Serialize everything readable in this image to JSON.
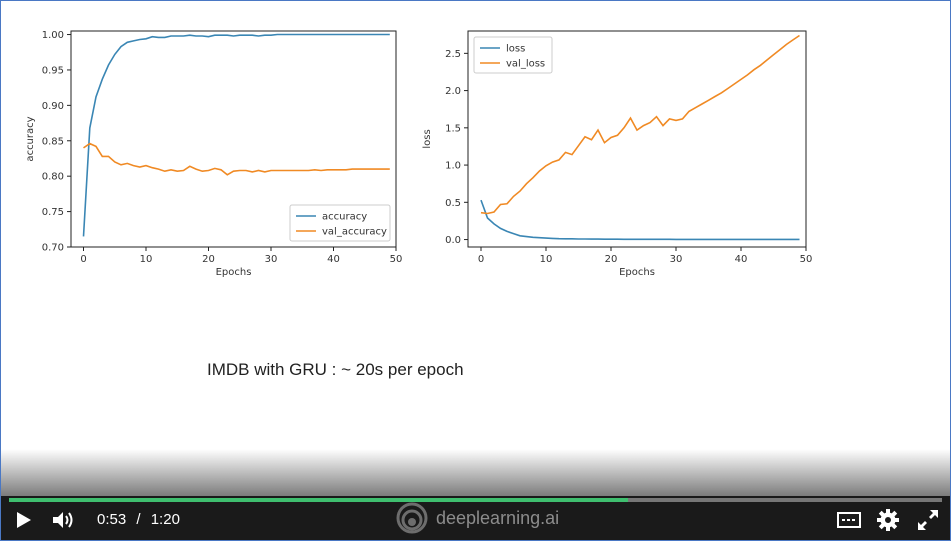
{
  "slide": {
    "caption": "IMDB with GRU : ~ 20s per epoch"
  },
  "colors": {
    "train": "#3a86b4",
    "val": "#f08a24",
    "progress": "#3fbf6f",
    "border": "#4a78c4"
  },
  "chart_data": [
    {
      "type": "line",
      "xlabel": "Epochs",
      "ylabel": "accuracy",
      "xlim": [
        -2,
        50
      ],
      "ylim": [
        0.7,
        1.005
      ],
      "xticks": [
        0,
        10,
        20,
        30,
        40,
        50
      ],
      "yticks": [
        "0.70",
        "0.75",
        "0.80",
        "0.85",
        "0.90",
        "0.95",
        "1.00"
      ],
      "ytick_values": [
        0.7,
        0.75,
        0.8,
        0.85,
        0.9,
        0.95,
        1.0
      ],
      "legend_placement": "bottom-right",
      "x": [
        0,
        1,
        2,
        3,
        4,
        5,
        6,
        7,
        8,
        9,
        10,
        11,
        12,
        13,
        14,
        15,
        16,
        17,
        18,
        19,
        20,
        21,
        22,
        23,
        24,
        25,
        26,
        27,
        28,
        29,
        30,
        31,
        32,
        33,
        34,
        35,
        36,
        37,
        38,
        39,
        40,
        41,
        42,
        43,
        44,
        45,
        46,
        47,
        48,
        49
      ],
      "series": [
        {
          "name": "accuracy",
          "values": [
            0.715,
            0.868,
            0.912,
            0.937,
            0.957,
            0.972,
            0.983,
            0.989,
            0.991,
            0.993,
            0.994,
            0.997,
            0.996,
            0.996,
            0.998,
            0.998,
            0.998,
            0.999,
            0.998,
            0.998,
            0.997,
            0.999,
            0.999,
            0.999,
            0.998,
            0.999,
            0.999,
            0.999,
            0.998,
            0.999,
            0.999,
            1.0,
            1.0,
            1.0,
            1.0,
            1.0,
            1.0,
            1.0,
            1.0,
            1.0,
            1.0,
            1.0,
            1.0,
            1.0,
            1.0,
            1.0,
            1.0,
            1.0,
            1.0,
            1.0
          ]
        },
        {
          "name": "val_accuracy",
          "values": [
            0.84,
            0.846,
            0.842,
            0.828,
            0.828,
            0.82,
            0.816,
            0.818,
            0.815,
            0.813,
            0.815,
            0.812,
            0.81,
            0.807,
            0.809,
            0.807,
            0.808,
            0.814,
            0.81,
            0.807,
            0.808,
            0.811,
            0.809,
            0.802,
            0.807,
            0.808,
            0.808,
            0.806,
            0.808,
            0.806,
            0.808,
            0.808,
            0.808,
            0.808,
            0.808,
            0.808,
            0.808,
            0.809,
            0.808,
            0.809,
            0.809,
            0.809,
            0.809,
            0.81,
            0.81,
            0.81,
            0.81,
            0.81,
            0.81,
            0.81
          ]
        }
      ]
    },
    {
      "type": "line",
      "xlabel": "Epochs",
      "ylabel": "loss",
      "xlim": [
        -2,
        50
      ],
      "ylim": [
        -0.1,
        2.8
      ],
      "xticks": [
        0,
        10,
        20,
        30,
        40,
        50
      ],
      "yticks": [
        "0.0",
        "0.5",
        "1.0",
        "1.5",
        "2.0",
        "2.5"
      ],
      "ytick_values": [
        0,
        0.5,
        1.0,
        1.5,
        2.0,
        2.5
      ],
      "legend_placement": "top-left",
      "x": [
        0,
        1,
        2,
        3,
        4,
        5,
        6,
        7,
        8,
        9,
        10,
        11,
        12,
        13,
        14,
        15,
        16,
        17,
        18,
        19,
        20,
        21,
        22,
        23,
        24,
        25,
        26,
        27,
        28,
        29,
        30,
        31,
        32,
        33,
        34,
        35,
        36,
        37,
        38,
        39,
        40,
        41,
        42,
        43,
        44,
        45,
        46,
        47,
        48,
        49
      ],
      "series": [
        {
          "name": "loss",
          "values": [
            0.53,
            0.29,
            0.21,
            0.15,
            0.11,
            0.08,
            0.05,
            0.04,
            0.03,
            0.025,
            0.02,
            0.015,
            0.012,
            0.01,
            0.01,
            0.008,
            0.007,
            0.006,
            0.006,
            0.005,
            0.005,
            0.005,
            0.004,
            0.004,
            0.004,
            0.003,
            0.003,
            0.003,
            0.003,
            0.003,
            0.002,
            0.002,
            0.002,
            0.002,
            0.002,
            0.002,
            0.002,
            0.002,
            0.002,
            0.002,
            0.002,
            0.002,
            0.002,
            0.002,
            0.002,
            0.002,
            0.002,
            0.002,
            0.002,
            0.002
          ]
        },
        {
          "name": "val_loss",
          "values": [
            0.36,
            0.35,
            0.37,
            0.47,
            0.48,
            0.58,
            0.65,
            0.75,
            0.83,
            0.92,
            0.99,
            1.04,
            1.07,
            1.17,
            1.14,
            1.26,
            1.38,
            1.34,
            1.47,
            1.3,
            1.37,
            1.4,
            1.5,
            1.63,
            1.47,
            1.53,
            1.57,
            1.65,
            1.53,
            1.62,
            1.6,
            1.62,
            1.72,
            1.77,
            1.82,
            1.87,
            1.92,
            1.97,
            2.03,
            2.09,
            2.15,
            2.21,
            2.28,
            2.34,
            2.41,
            2.48,
            2.55,
            2.62,
            2.68,
            2.74
          ]
        }
      ]
    }
  ],
  "player": {
    "current_time": "0:53",
    "separator": "/",
    "duration": "1:20",
    "progress_fraction": 0.663,
    "brand": "deeplearning.ai",
    "icons": [
      "play-icon",
      "volume-icon",
      "captions-icon",
      "gear-icon",
      "fullscreen-icon"
    ]
  }
}
